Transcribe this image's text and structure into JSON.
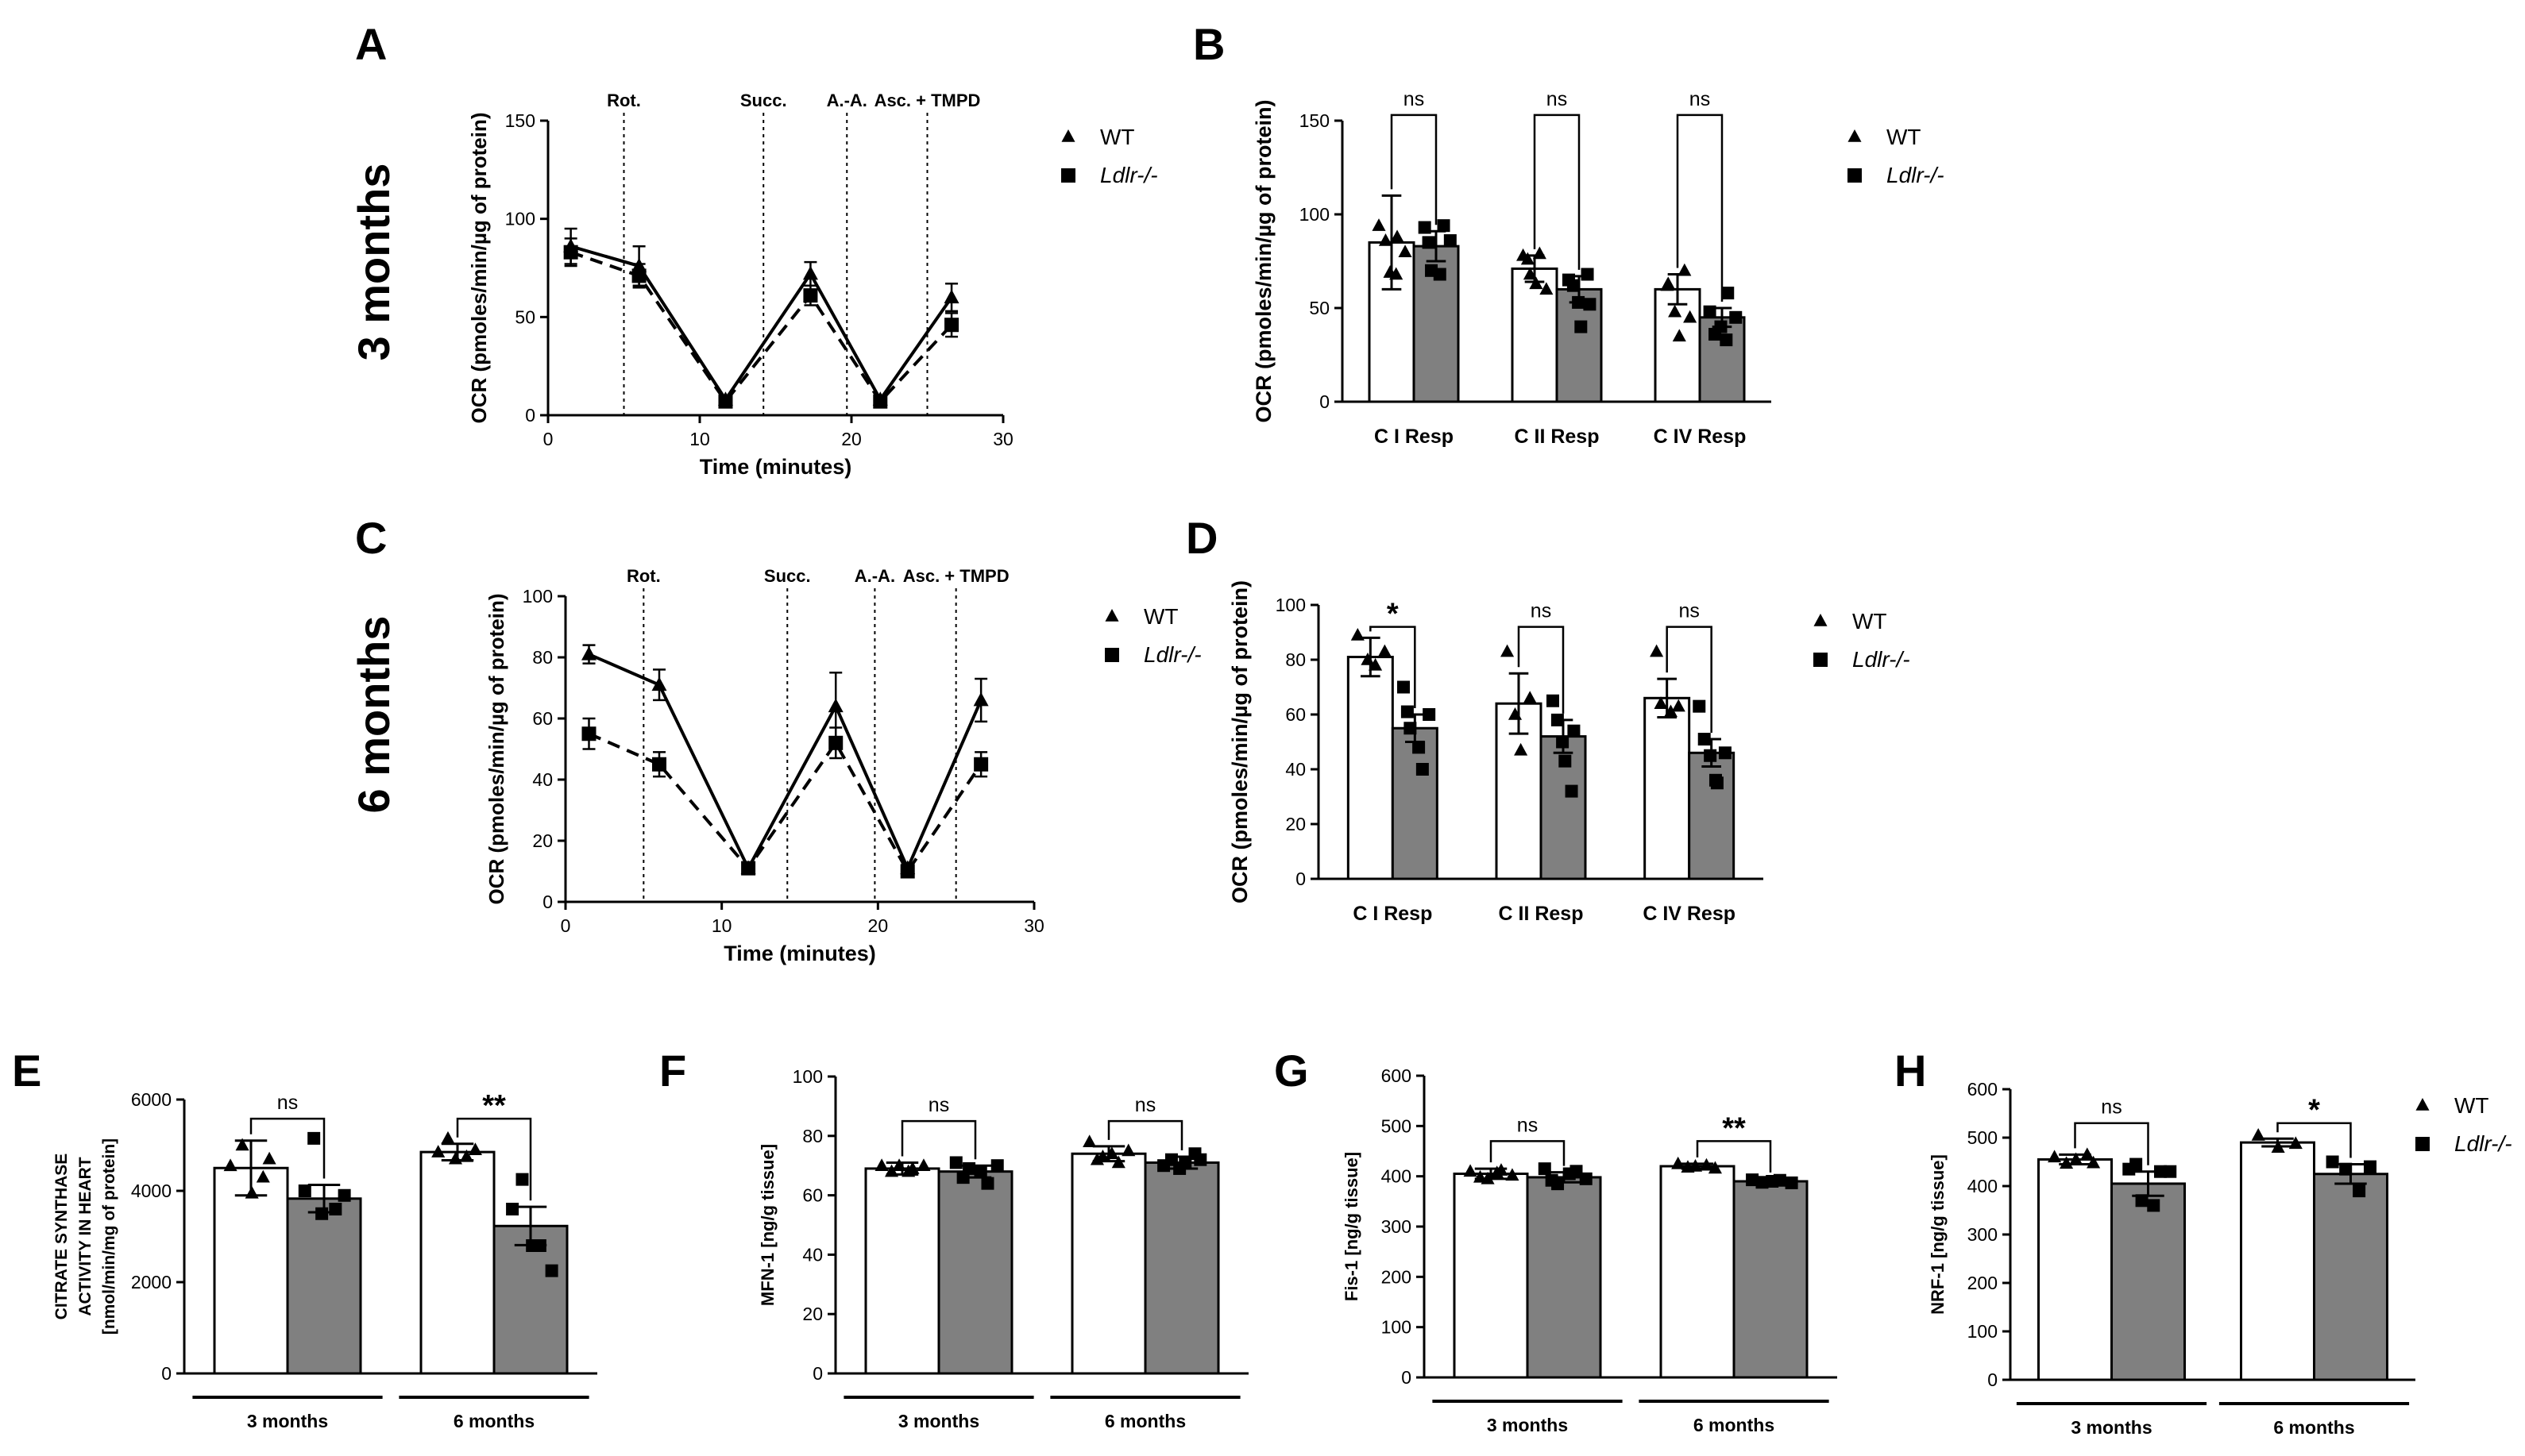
{
  "chart_data": [
    {
      "id": "A",
      "type": "line",
      "panel_label": "A",
      "xlabel": "Time (minutes)",
      "ylabel": "OCR (pmoles/min/µg of protein)",
      "xlim": [
        0,
        30
      ],
      "ylim": [
        0,
        150
      ],
      "x_ticks": [
        "0",
        "10",
        "20",
        "30"
      ],
      "y_ticks": [
        "0",
        "50",
        "100",
        "150"
      ],
      "events": [
        {
          "label": "Rot.",
          "x": 5
        },
        {
          "label": "Succ.",
          "x": 14.2
        },
        {
          "label": "A.-A.",
          "x": 19.7
        },
        {
          "label": "Asc. + TMPD",
          "x": 25
        }
      ],
      "series": [
        {
          "name": "WT",
          "marker": "triangle",
          "line": "solid",
          "x": [
            1.5,
            6,
            11.7,
            17.3,
            21.9,
            26.6
          ],
          "y": [
            86,
            76,
            8,
            72,
            8,
            60
          ],
          "err": [
            9,
            10,
            2,
            6,
            2,
            7
          ]
        },
        {
          "name": "Ldlr-/-",
          "marker": "square",
          "line": "dashed",
          "x": [
            1.5,
            6,
            11.7,
            17.3,
            21.9,
            26.6
          ],
          "y": [
            83,
            71,
            7,
            61,
            7,
            46
          ],
          "err": [
            7,
            6,
            2,
            5,
            2,
            6
          ]
        }
      ]
    },
    {
      "id": "B",
      "type": "bar",
      "panel_label": "B",
      "categories": [
        "C I Resp",
        "C II Resp",
        "C IV Resp"
      ],
      "ylabel": "OCR (pmoles/min/µg of protein)",
      "ylim": [
        0,
        150
      ],
      "y_ticks": [
        "0",
        "50",
        "100",
        "150"
      ],
      "series": [
        {
          "name": "WT",
          "values": [
            85,
            71,
            60
          ],
          "err": [
            25,
            7,
            8
          ],
          "points": [
            [
              94,
              86,
              69,
              68,
              88,
              80
            ],
            [
              78,
              76,
              68,
              63,
              79,
              60
            ],
            [
              62,
              63,
              48,
              35,
              70,
              45
            ]
          ]
        },
        {
          "name": "Ldlr-/-",
          "values": [
            83,
            60,
            45
          ],
          "err": [
            8,
            7,
            5
          ],
          "points": [
            [
              93,
              85,
              70,
              68,
              94,
              86
            ],
            [
              65,
              62,
              53,
              40,
              68,
              52
            ],
            [
              48,
              36,
              40,
              33,
              58,
              45
            ]
          ]
        }
      ],
      "significance": [
        "ns",
        "ns",
        "ns"
      ],
      "bracket_y": [
        153,
        153,
        153
      ]
    },
    {
      "id": "C",
      "type": "line",
      "panel_label": "C",
      "xlabel": "Time (minutes)",
      "ylabel": "OCR (pmoles/min/µg of protein)",
      "xlim": [
        0,
        30
      ],
      "ylim": [
        0,
        100
      ],
      "x_ticks": [
        "0",
        "10",
        "20",
        "30"
      ],
      "y_ticks": [
        "0",
        "20",
        "40",
        "60",
        "80",
        "100"
      ],
      "events": [
        {
          "label": "Rot.",
          "x": 5
        },
        {
          "label": "Succ.",
          "x": 14.2
        },
        {
          "label": "A.-A.",
          "x": 19.8
        },
        {
          "label": "Asc. + TMPD",
          "x": 25
        }
      ],
      "series": [
        {
          "name": "WT",
          "marker": "triangle",
          "line": "solid",
          "x": [
            1.5,
            6,
            11.7,
            17.3,
            21.9,
            26.6
          ],
          "y": [
            81,
            71,
            11,
            64,
            11,
            66
          ],
          "err": [
            3,
            5,
            1.5,
            11,
            1.5,
            7
          ]
        },
        {
          "name": "Ldlr-/-",
          "marker": "square",
          "line": "dashed",
          "x": [
            1.5,
            6,
            11.7,
            17.3,
            21.9,
            26.6
          ],
          "y": [
            55,
            45,
            11,
            52,
            10,
            45
          ],
          "err": [
            5,
            4,
            1.5,
            5,
            1.5,
            4
          ]
        }
      ]
    },
    {
      "id": "D",
      "type": "bar",
      "panel_label": "D",
      "categories": [
        "C I Resp",
        "C II Resp",
        "C IV Resp"
      ],
      "ylabel": "OCR (pmoles/min/µg of protein)",
      "ylim": [
        0,
        100
      ],
      "y_ticks": [
        "0",
        "20",
        "40",
        "60",
        "80",
        "100"
      ],
      "series": [
        {
          "name": "WT",
          "values": [
            81,
            64,
            66
          ],
          "err": [
            7,
            11,
            7
          ],
          "points": [
            [
              89,
              80,
              78,
              83
            ],
            [
              83,
              60,
              47,
              66
            ],
            [
              83,
              64,
              61,
              63
            ]
          ]
        },
        {
          "name": "Ldlr-/-",
          "values": [
            55,
            52,
            46
          ],
          "err": [
            5,
            6,
            5
          ],
          "points": [
            [
              70,
              61,
              55,
              48,
              40,
              60
            ],
            [
              65,
              58,
              50,
              43,
              32,
              54
            ],
            [
              63,
              51,
              45,
              36,
              35,
              46
            ]
          ]
        }
      ],
      "significance": [
        "*",
        "ns",
        "ns"
      ],
      "bracket_y": [
        92,
        92,
        92
      ]
    },
    {
      "id": "E",
      "type": "bar",
      "panel_label": "E",
      "categories": [
        "3 months",
        "6 months"
      ],
      "ylabel_lines": [
        "CITRATE SYNTHASE",
        "ACTIVITY IN HEART",
        "[nmol/min/mg of protein]"
      ],
      "ylim": [
        0,
        6000
      ],
      "y_ticks": [
        "0",
        "2000",
        "4000",
        "6000"
      ],
      "series": [
        {
          "name": "WT",
          "values": [
            4500,
            4850
          ],
          "err": [
            600,
            180
          ],
          "points": [
            [
              4550,
              5000,
              3950,
              4300,
              4700
            ],
            [
              4850,
              5150,
              4700,
              4750,
              4900
            ]
          ]
        },
        {
          "name": "Ldlr-/-",
          "values": [
            3830,
            3230
          ],
          "err": [
            300,
            420
          ],
          "points": [
            [
              4000,
              5150,
              3500,
              3600,
              3900
            ],
            [
              3600,
              4250,
              2800,
              2800,
              2250
            ]
          ]
        }
      ],
      "significance": [
        "ns",
        "**"
      ],
      "bracket_y": [
        5580,
        5580
      ]
    },
    {
      "id": "F",
      "type": "bar",
      "panel_label": "F",
      "categories": [
        "3 months",
        "6 months"
      ],
      "ylabel": "MFN-1 [ng/g tissue]",
      "ylim": [
        0,
        100
      ],
      "y_ticks": [
        "0",
        "20",
        "40",
        "60",
        "80",
        "100"
      ],
      "series": [
        {
          "name": "WT",
          "values": [
            69,
            74
          ],
          "err": [
            2,
            2.5
          ],
          "points": [
            [
              70,
              68,
              70,
              68,
              69,
              70
            ],
            [
              78,
              72,
              73,
              74,
              71,
              75
            ]
          ]
        },
        {
          "name": "Ldlr-/-",
          "values": [
            68,
            71
          ],
          "err": [
            2,
            2
          ],
          "points": [
            [
              71,
              66,
              69,
              68,
              64,
              70
            ],
            [
              70,
              72,
              69,
              71,
              74,
              72
            ]
          ]
        }
      ],
      "significance": [
        "ns",
        "ns"
      ],
      "bracket_y": [
        85,
        85
      ]
    },
    {
      "id": "G",
      "type": "bar",
      "panel_label": "G",
      "categories": [
        "3 months",
        "6 months"
      ],
      "ylabel": "Fis-1 [ng/g tissue]",
      "ylim": [
        0,
        600
      ],
      "y_ticks": [
        "0",
        "100",
        "200",
        "300",
        "400",
        "500",
        "600"
      ],
      "series": [
        {
          "name": "WT",
          "values": [
            405,
            420
          ],
          "err": [
            10,
            5
          ],
          "points": [
            [
              410,
              398,
              395,
              407,
              412,
              402
            ],
            [
              425,
              418,
              420,
              422,
              416
            ]
          ]
        },
        {
          "name": "Ldlr-/-",
          "values": [
            398,
            390
          ],
          "err": [
            10,
            5
          ],
          "points": [
            [
              415,
              392,
              385,
              405,
              410,
              395
            ],
            [
              393,
              388,
              390,
              392,
              387
            ]
          ]
        }
      ],
      "significance": [
        "ns",
        "**"
      ],
      "bracket_y": [
        470,
        470
      ]
    },
    {
      "id": "H",
      "type": "bar",
      "panel_label": "H",
      "categories": [
        "3 months",
        "6 months"
      ],
      "ylabel": "NRF-1 [ng/g tissue]",
      "ylim": [
        0,
        600
      ],
      "y_ticks": [
        "0",
        "100",
        "200",
        "300",
        "400",
        "500",
        "600"
      ],
      "series": [
        {
          "name": "WT",
          "values": [
            455,
            490
          ],
          "err": [
            10,
            8
          ],
          "points": [
            [
              460,
              447,
              455,
              465,
              448
            ],
            [
              505,
              480,
              488
            ]
          ]
        },
        {
          "name": "Ldlr-/-",
          "values": [
            405,
            425
          ],
          "err": [
            25,
            20
          ],
          "points": [
            [
              435,
              445,
              370,
              360,
              430,
              430
            ],
            [
              450,
              435,
              390,
              440
            ]
          ]
        }
      ],
      "significance": [
        "ns",
        "*"
      ],
      "bracket_y": [
        530,
        530
      ]
    }
  ],
  "row_labels": [
    "3 months",
    "6 months"
  ],
  "legend": {
    "wt": "WT",
    "ko": "Ldlr-/-"
  }
}
